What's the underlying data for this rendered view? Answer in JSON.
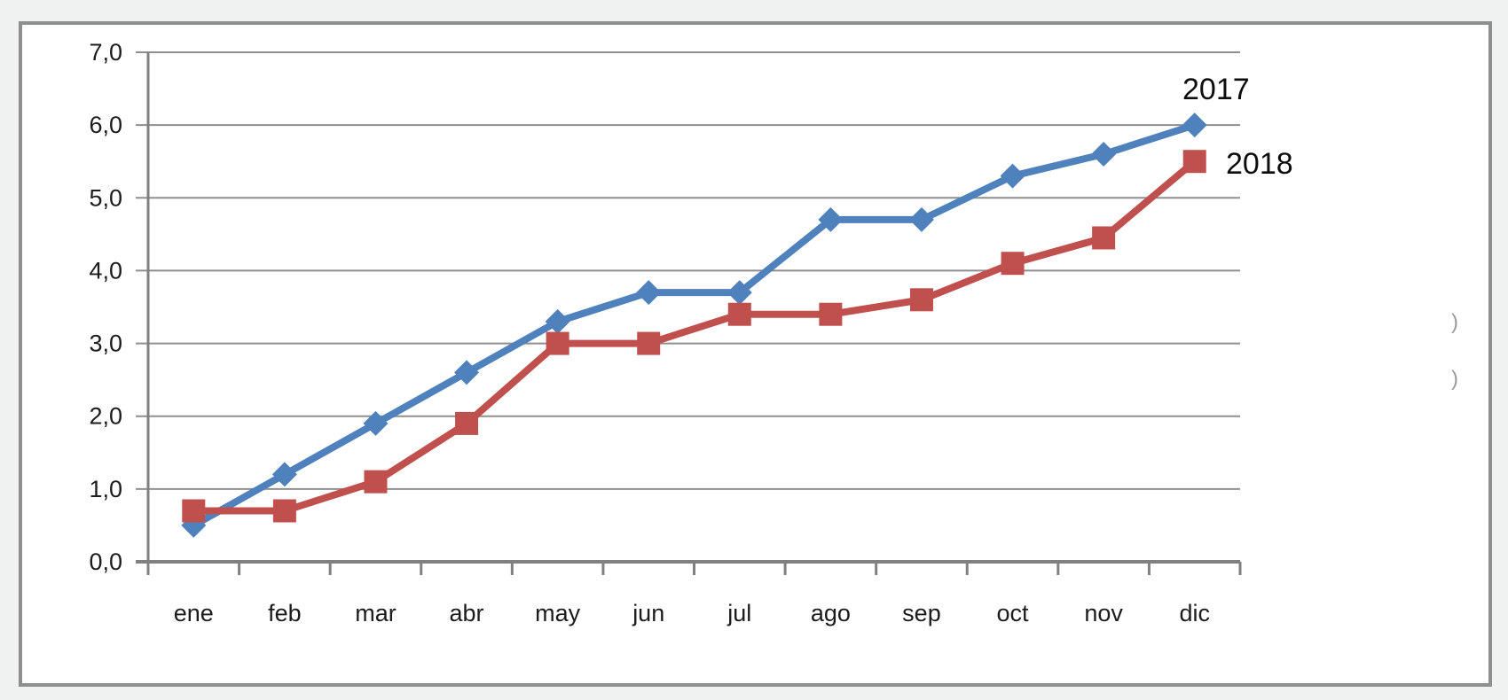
{
  "chart_data": {
    "type": "line",
    "title": "",
    "xlabel": "",
    "ylabel": "",
    "categories": [
      "ene",
      "feb",
      "mar",
      "abr",
      "may",
      "jun",
      "jul",
      "ago",
      "sep",
      "oct",
      "nov",
      "dic"
    ],
    "series": [
      {
        "name": "2017",
        "color": "#4F81BD",
        "marker": "diamond",
        "values": [
          0.5,
          1.2,
          1.9,
          2.6,
          3.3,
          3.7,
          3.7,
          4.7,
          4.7,
          5.3,
          5.6,
          6.0
        ]
      },
      {
        "name": "2018",
        "color": "#C0504D",
        "marker": "square",
        "values": [
          0.7,
          0.7,
          1.1,
          1.9,
          3.0,
          3.0,
          3.4,
          3.4,
          3.6,
          4.1,
          4.45,
          5.5
        ]
      }
    ],
    "ylim": [
      0,
      7
    ],
    "ytick_step": 1,
    "ytick_labels": [
      "0,0",
      "1,0",
      "2,0",
      "3,0",
      "4,0",
      "5,0",
      "6,0",
      "7,0"
    ],
    "grid": true,
    "legend_position": "end-of-line-labels",
    "grid_color": "#8f8f8f",
    "axis_color": "#808080",
    "tick_text_color": "#1c1c1c"
  },
  "artifacts": {
    "right_edge_mark_1": ")",
    "right_edge_mark_2": ")"
  }
}
